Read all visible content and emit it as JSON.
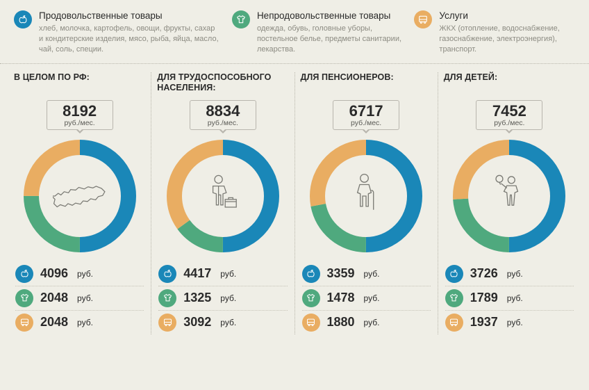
{
  "colors": {
    "food": "#1a87b8",
    "nonfood": "#4fa97e",
    "services": "#e9ad62",
    "bg": "#efeee6",
    "ring_track": "#dedacd",
    "icon_stroke": "#7a7a74"
  },
  "currency": "руб.",
  "unit": "руб./мес.",
  "legend": {
    "food": {
      "title": "Продовольственные товары",
      "desc": "хлеб, молочка, картофель, овощи, фрукты, сахар и кондитерские изделия, мясо, рыба, яйца, масло, чай, соль, специи."
    },
    "nonfood": {
      "title": "Непродовольственные товары",
      "desc": "одежда, обувь, головные уборы, постельное белье, предметы санитарии,  лекарства."
    },
    "services": {
      "title": "Услуги",
      "desc": "ЖКХ (отопление, водоснабжение, газоснабжение, электроэнергия), транспорт."
    }
  },
  "cards": [
    {
      "title": "В ЦЕЛОМ ПО РФ:",
      "total": "8192",
      "center_icon": "russia",
      "food": 4096,
      "nonfood": 2048,
      "services": 2048,
      "pct": {
        "food": 50,
        "nonfood": 25,
        "services": 25
      }
    },
    {
      "title": "ДЛЯ ТРУДОСПОСОБНОГО НАСЕЛЕНИЯ:",
      "total": "8834",
      "center_icon": "worker",
      "food": 4417,
      "nonfood": 1325,
      "services": 3092,
      "pct": {
        "food": 50,
        "nonfood": 15,
        "services": 35
      }
    },
    {
      "title": "ДЛЯ ПЕНСИОНЕРОВ:",
      "total": "6717",
      "center_icon": "elder",
      "food": 3359,
      "nonfood": 1478,
      "services": 1880,
      "pct": {
        "food": 50,
        "nonfood": 22,
        "services": 28
      }
    },
    {
      "title": "ДЛЯ ДЕТЕЙ:",
      "total": "7452",
      "center_icon": "child",
      "food": 3726,
      "nonfood": 1789,
      "services": 1937,
      "pct": {
        "food": 50,
        "nonfood": 24,
        "services": 26
      }
    }
  ],
  "donut": {
    "r": 70,
    "stroke": 22
  }
}
